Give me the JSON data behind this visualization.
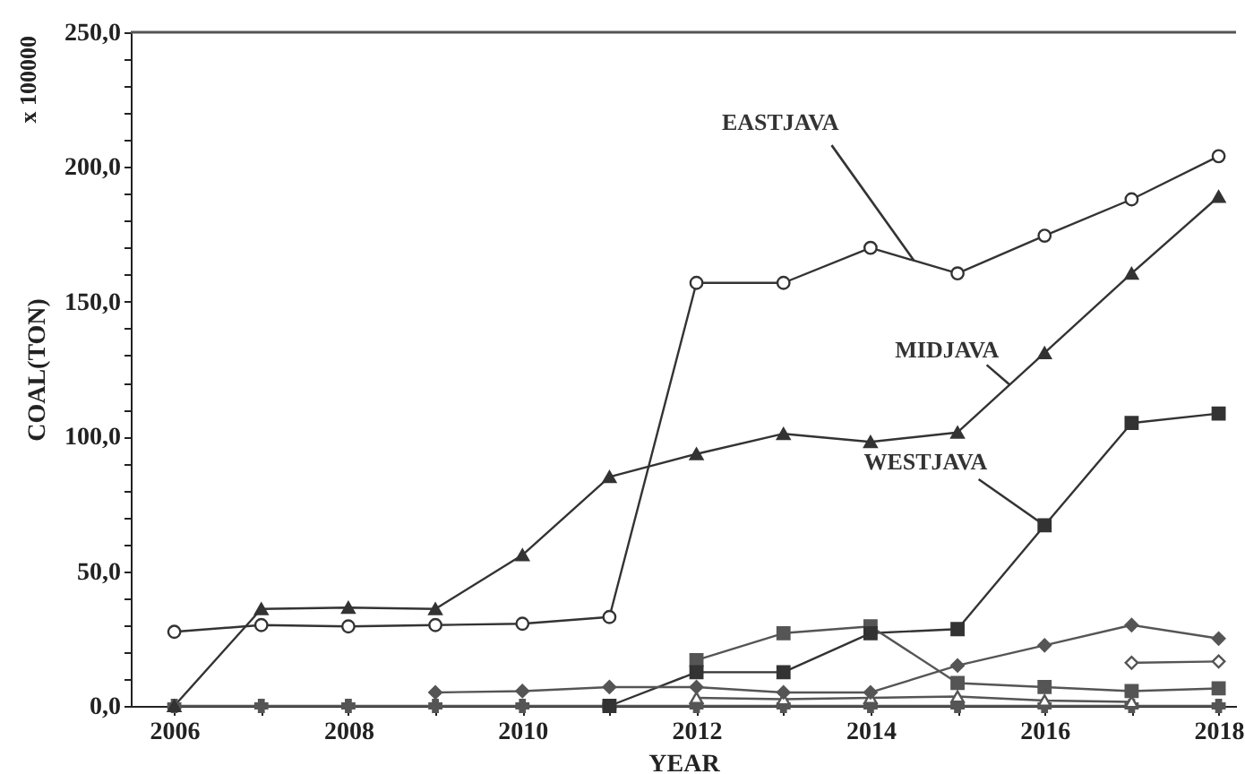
{
  "chart_data": {
    "type": "line",
    "xlabel": "YEAR",
    "ylabel": "COAL(TON)",
    "annotations": [
      "x 100000"
    ],
    "x": [
      2006,
      2007,
      2008,
      2009,
      2010,
      2011,
      2012,
      2013,
      2014,
      2015,
      2016,
      2017,
      2018
    ],
    "xlim": [
      2005.5,
      2018.2
    ],
    "xticks": [
      2006,
      {
        "value": 2007,
        "label": null
      },
      2008,
      {
        "value": 2009,
        "label": null
      },
      2010,
      {
        "value": 2011,
        "label": null
      },
      2012,
      {
        "value": 2013,
        "label": null
      },
      2014,
      {
        "value": 2015,
        "label": null
      },
      2016,
      {
        "value": 2017,
        "label": null
      },
      2018
    ],
    "ylim": [
      0,
      250
    ],
    "yticks": [
      {
        "value": 0,
        "label": "0,0"
      },
      {
        "value": 10,
        "label": null
      },
      {
        "value": 20,
        "label": null
      },
      {
        "value": 30,
        "label": null
      },
      {
        "value": 40,
        "label": null
      },
      {
        "value": 50,
        "label": "50,0"
      },
      {
        "value": 60,
        "label": null
      },
      {
        "value": 70,
        "label": null
      },
      {
        "value": 80,
        "label": null
      },
      {
        "value": 90,
        "label": null
      },
      {
        "value": 100,
        "label": "100,0"
      },
      {
        "value": 110,
        "label": null
      },
      {
        "value": 120,
        "label": null
      },
      {
        "value": 130,
        "label": null
      },
      {
        "value": 140,
        "label": null
      },
      {
        "value": 150,
        "label": "150,0"
      },
      {
        "value": 160,
        "label": null
      },
      {
        "value": 170,
        "label": null
      },
      {
        "value": 180,
        "label": null
      },
      {
        "value": 190,
        "label": null
      },
      {
        "value": 200,
        "label": "200,0"
      },
      {
        "value": 210,
        "label": null
      },
      {
        "value": 220,
        "label": null
      },
      {
        "value": 230,
        "label": null
      },
      {
        "value": 240,
        "label": null
      },
      {
        "value": 250,
        "label": "250,0"
      }
    ],
    "grid": false,
    "line_style": "solid",
    "series": [
      {
        "name": "EASTJAVA",
        "color": "#333333",
        "marker": "circle",
        "values": [
          27.5,
          30,
          29.5,
          30,
          30.5,
          33,
          157,
          157,
          170,
          160.5,
          174.5,
          188,
          204
        ]
      },
      {
        "name": "MIDJAVA",
        "color": "#333333",
        "marker": "triangle",
        "values": [
          0,
          36,
          36.5,
          36,
          56,
          85,
          93.5,
          101,
          98,
          101.5,
          131,
          160.5,
          189
        ]
      },
      {
        "name": "WESTJAVA",
        "color": "#333333",
        "marker": "square",
        "values": [
          null,
          null,
          null,
          null,
          null,
          0,
          12.5,
          12.5,
          27,
          28.5,
          67,
          105,
          108.5
        ]
      },
      {
        "color": "#555555",
        "marker": "square",
        "values": [
          null,
          null,
          null,
          null,
          null,
          null,
          17,
          27,
          29.5,
          8.5,
          7,
          5.5,
          6.5
        ]
      },
      {
        "color": "#555555",
        "marker": "diamond",
        "values": [
          null,
          null,
          null,
          5,
          5.5,
          7,
          7,
          5,
          5,
          15,
          22.5,
          30,
          25
        ]
      },
      {
        "color": "#555555",
        "marker": "diamond",
        "values": [
          null,
          null,
          null,
          null,
          null,
          null,
          null,
          null,
          null,
          null,
          null,
          16,
          16.5
        ]
      },
      {
        "color": "#555555",
        "marker": "triangle",
        "values": [
          null,
          null,
          null,
          null,
          null,
          null,
          3,
          2.5,
          3,
          3.5,
          2,
          1.5,
          null
        ]
      },
      {
        "color": "#555555",
        "marker": "cross",
        "values": [
          0,
          0,
          0,
          0,
          0,
          0,
          0,
          0,
          0,
          0,
          0,
          0,
          0
        ]
      }
    ]
  }
}
